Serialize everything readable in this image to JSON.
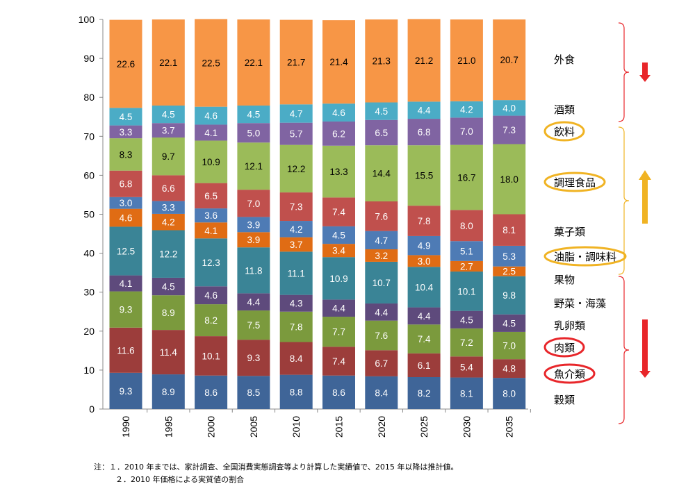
{
  "chart_data": {
    "type": "bar",
    "stacked": true,
    "title": "",
    "xlabel": "",
    "ylabel": "",
    "ylim": [
      0,
      100
    ],
    "yticks": [
      0,
      10,
      20,
      30,
      40,
      50,
      60,
      70,
      80,
      90,
      100
    ],
    "grid": false,
    "legend": "right",
    "categories": [
      "1990",
      "1995",
      "2000",
      "2005",
      "2010",
      "2015",
      "2020",
      "2025",
      "2030",
      "2035"
    ],
    "series": [
      {
        "name": "穀類",
        "color": "#3f6598",
        "label_color": "#ffffff",
        "values": [
          9.3,
          8.9,
          8.6,
          8.5,
          8.8,
          8.6,
          8.4,
          8.2,
          8.1,
          8.0
        ]
      },
      {
        "name": "魚介類",
        "color": "#9c3d3b",
        "label_color": "#ffffff",
        "values": [
          11.6,
          11.4,
          10.1,
          9.3,
          8.4,
          7.4,
          6.7,
          6.1,
          5.4,
          4.8
        ]
      },
      {
        "name": "肉類",
        "color": "#7b9a3d",
        "label_color": "#ffffff",
        "values": [
          9.3,
          8.9,
          8.2,
          7.5,
          7.8,
          7.7,
          7.6,
          7.4,
          7.2,
          7.0
        ]
      },
      {
        "name": "乳卵類",
        "color": "#5e4a7c",
        "label_color": "#ffffff",
        "values": [
          4.1,
          4.5,
          4.6,
          4.4,
          4.3,
          4.4,
          4.4,
          4.4,
          4.5,
          4.5
        ]
      },
      {
        "name": "野菜・海藻",
        "color": "#3a8496",
        "label_color": "#ffffff",
        "values": [
          12.5,
          12.2,
          12.3,
          11.8,
          11.1,
          10.9,
          10.7,
          10.4,
          10.1,
          9.8
        ]
      },
      {
        "name": "果物",
        "color": "#e06c14",
        "label_color": "#ffffff",
        "values": [
          4.6,
          4.2,
          4.1,
          3.9,
          3.7,
          3.4,
          3.2,
          3.0,
          2.7,
          2.5
        ]
      },
      {
        "name": "油脂・調味料",
        "color": "#4e7bb5",
        "label_color": "#ffffff",
        "values": [
          3.0,
          3.3,
          3.6,
          3.9,
          4.2,
          4.5,
          4.7,
          4.9,
          5.1,
          5.3
        ]
      },
      {
        "name": "菓子類",
        "color": "#c0504d",
        "label_color": "#ffffff",
        "values": [
          6.8,
          6.6,
          6.5,
          7.0,
          7.3,
          7.4,
          7.6,
          7.8,
          8.0,
          8.1
        ]
      },
      {
        "name": "調理食品",
        "color": "#9bbb59",
        "label_color": "#000000",
        "values": [
          8.3,
          9.7,
          10.9,
          12.1,
          12.2,
          13.3,
          14.4,
          15.5,
          16.7,
          18.0
        ]
      },
      {
        "name": "飲料",
        "color": "#8064a2",
        "label_color": "#ffffff",
        "values": [
          3.3,
          3.7,
          4.1,
          5.0,
          5.7,
          6.2,
          6.5,
          6.8,
          7.0,
          7.3
        ]
      },
      {
        "name": "酒類",
        "color": "#4bacc6",
        "label_color": "#ffffff",
        "values": [
          4.5,
          4.5,
          4.6,
          4.5,
          4.7,
          4.6,
          4.5,
          4.4,
          4.2,
          4.0
        ]
      },
      {
        "name": "外食",
        "color": "#f79646",
        "label_color": "#000000",
        "values": [
          22.6,
          22.1,
          22.5,
          22.1,
          21.7,
          21.4,
          21.3,
          21.2,
          21.0,
          20.7
        ]
      }
    ],
    "annotations": {
      "circled_up": [
        "飲料",
        "調理食品",
        "油脂・調味料"
      ],
      "circled_down": [
        "肉類",
        "魚介類"
      ],
      "groups": [
        {
          "members": [
            "外食",
            "酒類"
          ],
          "trend": "down",
          "color": "#e8262a"
        },
        {
          "members": [
            "飲料",
            "調理食品",
            "菓子類",
            "油脂・調味料"
          ],
          "trend": "up",
          "color": "#f0b323"
        },
        {
          "members": [
            "果物",
            "野菜・海藻",
            "乳卵類",
            "肉類",
            "魚介類",
            "穀類"
          ],
          "trend": "down",
          "color": "#e8262a"
        }
      ]
    }
  },
  "notes": {
    "line1": "注：１．2010 年までは、家計調査、全国消費実態調査等より計算した実績値で、2015 年以降は推計値。",
    "line2": "２．2010 年価格による実質値の割合"
  }
}
